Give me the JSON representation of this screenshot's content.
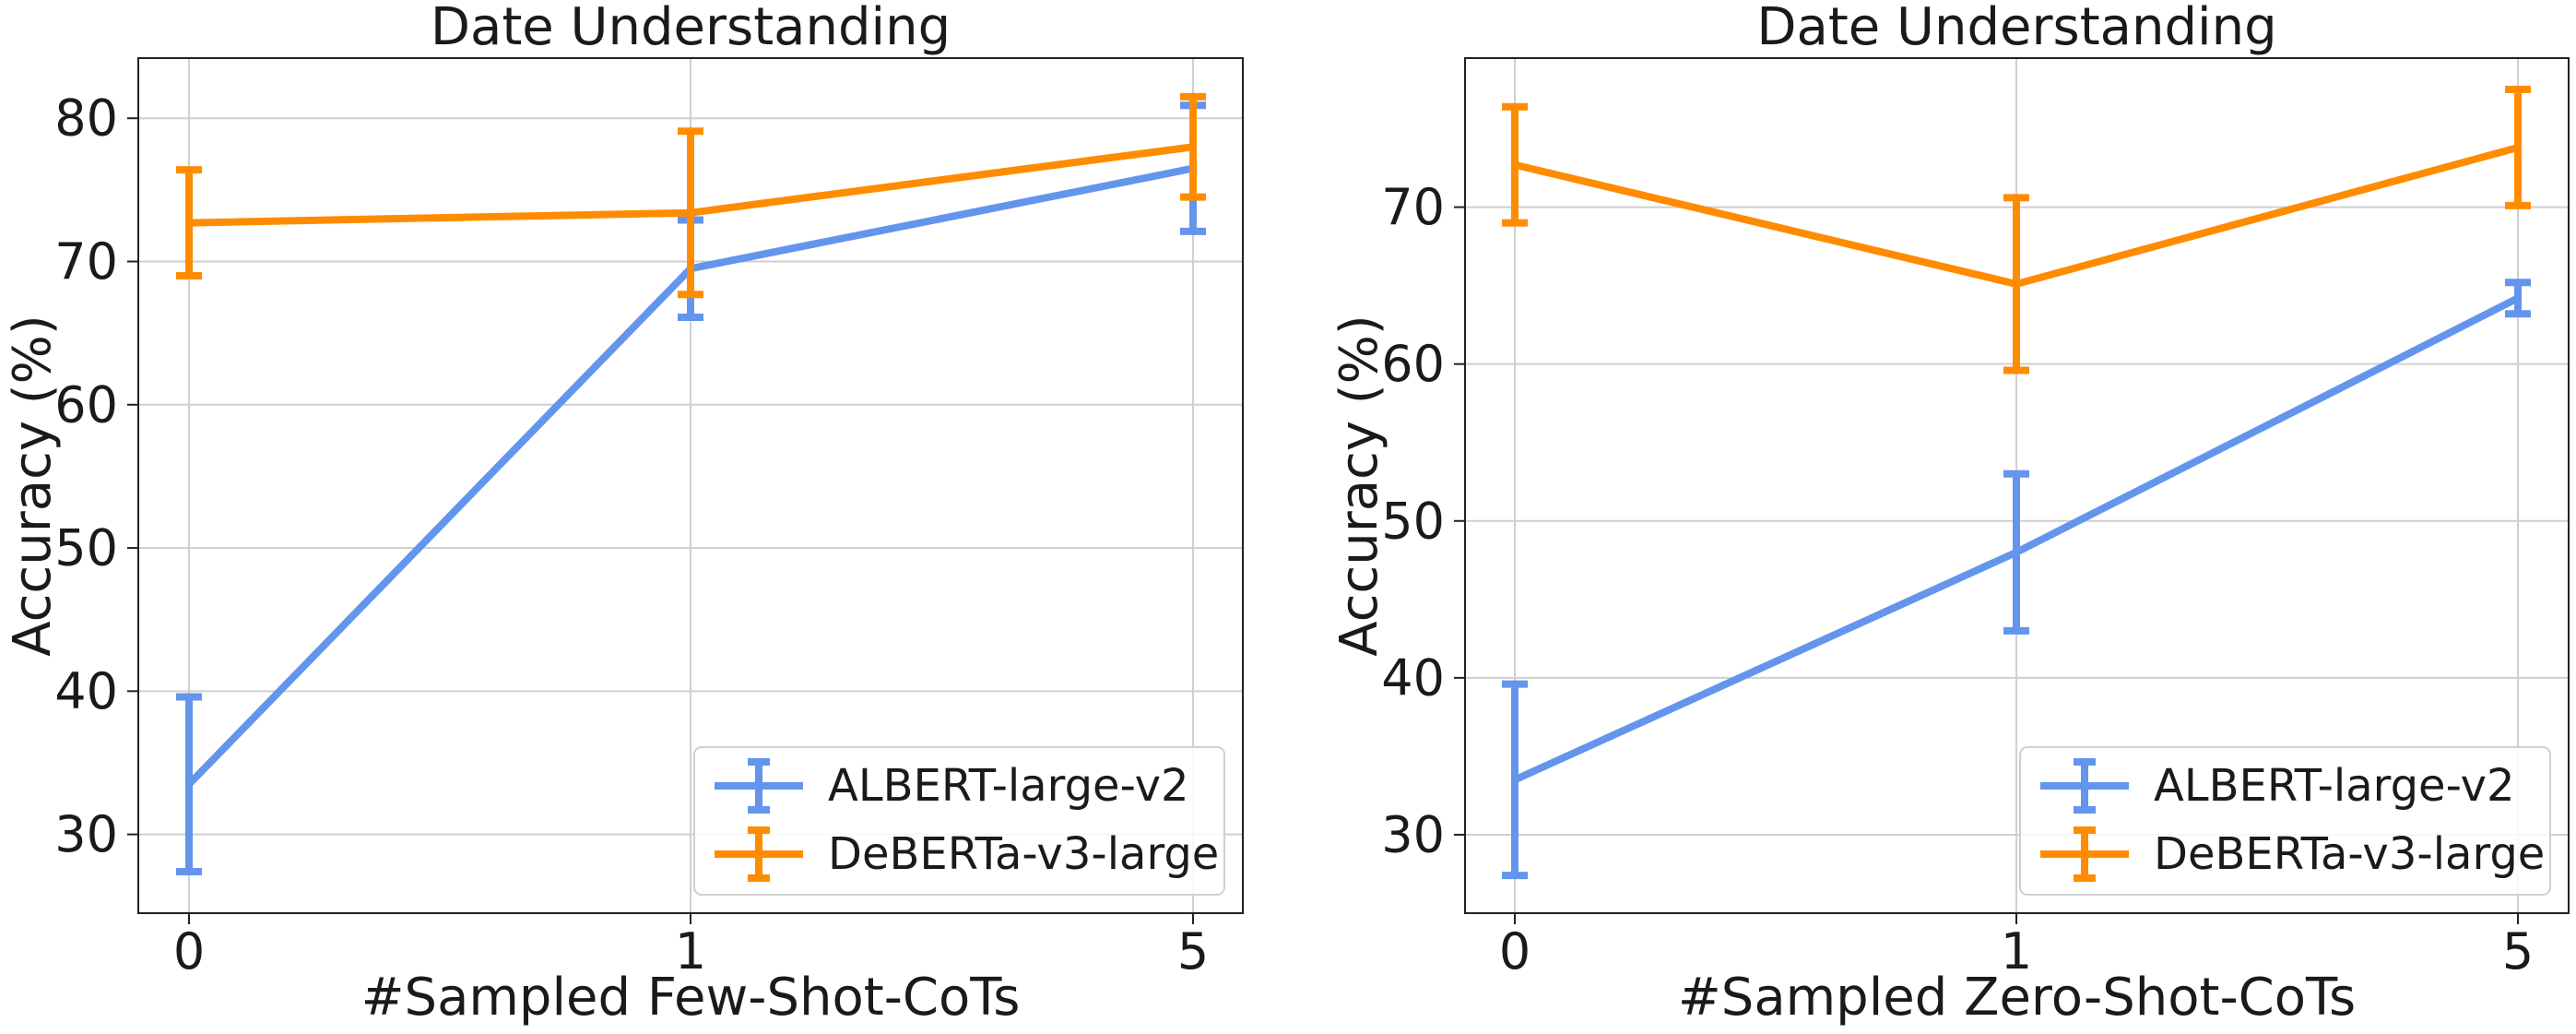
{
  "chart_data": [
    {
      "type": "line",
      "title": "Date Understanding",
      "xlabel": "#Sampled Few-Shot-CoTs",
      "ylabel": "Accuracy (%)",
      "categories": [
        "0",
        "1",
        "5"
      ],
      "ylim": [
        24.5,
        84.2
      ],
      "yticks": [
        30,
        40,
        50,
        60,
        70,
        80
      ],
      "grid": true,
      "legend_position": "lower-right",
      "series": [
        {
          "name": "ALBERT-large-v2",
          "color": "#6495ED",
          "values": [
            33.5,
            69.5,
            76.5
          ],
          "error": [
            6.1,
            3.4,
            4.4
          ]
        },
        {
          "name": "DeBERTa-v3-large",
          "color": "#FF8C00",
          "values": [
            72.7,
            73.4,
            78.0
          ],
          "error": [
            3.7,
            5.7,
            3.5
          ]
        }
      ]
    },
    {
      "type": "line",
      "title": "Date Understanding",
      "xlabel": "#Sampled Zero-Shot-CoTs",
      "ylabel": "Accuracy (%)",
      "categories": [
        "0",
        "1",
        "5"
      ],
      "ylim": [
        25,
        79.5
      ],
      "yticks": [
        30,
        40,
        50,
        60,
        70
      ],
      "grid": true,
      "legend_position": "lower-right",
      "series": [
        {
          "name": "ALBERT-large-v2",
          "color": "#6495ED",
          "values": [
            33.5,
            48.0,
            64.2
          ],
          "error": [
            6.1,
            5.0,
            1.0
          ]
        },
        {
          "name": "DeBERTa-v3-large",
          "color": "#FF8C00",
          "values": [
            72.7,
            65.1,
            73.8
          ],
          "error": [
            3.7,
            5.5,
            3.7
          ]
        }
      ]
    }
  ]
}
